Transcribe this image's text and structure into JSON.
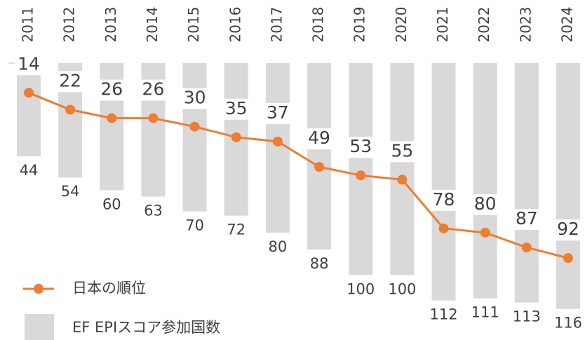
{
  "chart_data": {
    "type": "combo",
    "categories": [
      "2011",
      "2012",
      "2013",
      "2014",
      "2015",
      "2016",
      "2017",
      "2018",
      "2019",
      "2020",
      "2021",
      "2022",
      "2023",
      "2024"
    ],
    "series": [
      {
        "name": "EF EPIスコア参加国数",
        "type": "bar",
        "color": "#d9d9d9",
        "values": [
          44,
          54,
          60,
          63,
          70,
          72,
          80,
          88,
          100,
          100,
          112,
          111,
          113,
          116
        ]
      },
      {
        "name": "日本の順位",
        "type": "line",
        "color": "#ed7d31",
        "values": [
          14,
          22,
          26,
          26,
          30,
          35,
          37,
          49,
          53,
          55,
          78,
          80,
          87,
          92
        ]
      }
    ],
    "ylim": [
      0,
      130
    ],
    "y_inverted": true,
    "grid": false
  }
}
